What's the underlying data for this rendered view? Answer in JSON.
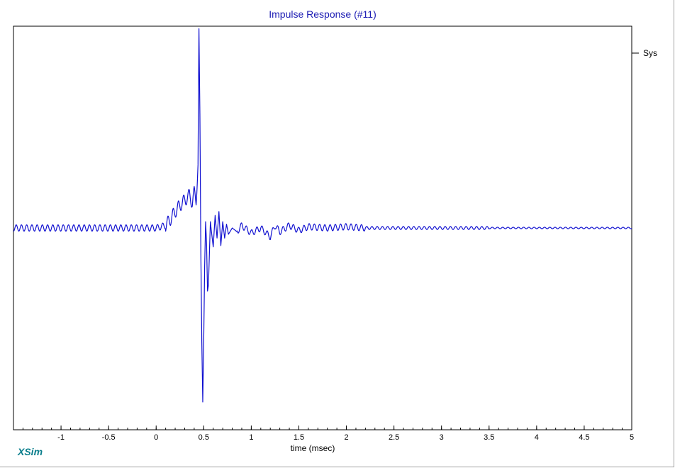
{
  "brand": "XSim",
  "chart_data": {
    "type": "line",
    "title": "Impulse Response (#11)",
    "xlabel": "time (msec)",
    "ylabel": "",
    "xlim": [
      -1.5,
      5.0
    ],
    "ylim": [
      -1.6,
      1.6
    ],
    "grid": false,
    "legend_position": "top-right",
    "x_tick_labels": [
      "-1",
      "-0.5",
      "0",
      "0.5",
      "1",
      "1.5",
      "2",
      "2.5",
      "3",
      "3.5",
      "4",
      "4.5",
      "5"
    ],
    "x_ticks": [
      -1,
      -0.5,
      0,
      0.5,
      1,
      1.5,
      2,
      2.5,
      3,
      3.5,
      4,
      4.5,
      5
    ],
    "colors": {
      "series": "#1010d0",
      "title": "#1b1bb3",
      "brand": "#0a7e8c"
    },
    "series": [
      {
        "name": "Sys",
        "x": [
          -1.5,
          -1.2,
          -0.9,
          -0.6,
          -0.3,
          0.0,
          0.1,
          0.15,
          0.2,
          0.25,
          0.3,
          0.35,
          0.38,
          0.4,
          0.42,
          0.44,
          0.45,
          0.46,
          0.47,
          0.48,
          0.49,
          0.5,
          0.51,
          0.52,
          0.53,
          0.54,
          0.55,
          0.56,
          0.57,
          0.58,
          0.6,
          0.62,
          0.64,
          0.66,
          0.68,
          0.7,
          0.72,
          0.74,
          0.76,
          0.8,
          0.85,
          0.9,
          1.0,
          1.1,
          1.2,
          1.25,
          1.3,
          1.4,
          1.5,
          1.6,
          1.8,
          2.0,
          2.2,
          2.5,
          3.0,
          3.5,
          4.0,
          4.5,
          5.0
        ],
        "y": [
          0.0,
          0.0,
          0.0,
          0.0,
          0.0,
          0.0,
          0.02,
          0.07,
          0.13,
          0.18,
          0.22,
          0.26,
          0.2,
          0.28,
          0.22,
          0.5,
          1.58,
          0.9,
          -0.2,
          -0.9,
          -1.38,
          -0.9,
          -0.3,
          0.05,
          -0.12,
          -0.5,
          -0.45,
          -0.2,
          0.05,
          -0.02,
          -0.15,
          0.1,
          -0.08,
          0.13,
          -0.14,
          0.05,
          -0.08,
          0.03,
          -0.05,
          0.0,
          -0.03,
          0.02,
          -0.04,
          0.0,
          -0.07,
          0.02,
          -0.03,
          0.02,
          -0.02,
          0.01,
          0.0,
          0.01,
          0.0,
          0.0,
          0.0,
          0.0,
          0.0,
          0.0,
          0.0
        ]
      }
    ]
  }
}
